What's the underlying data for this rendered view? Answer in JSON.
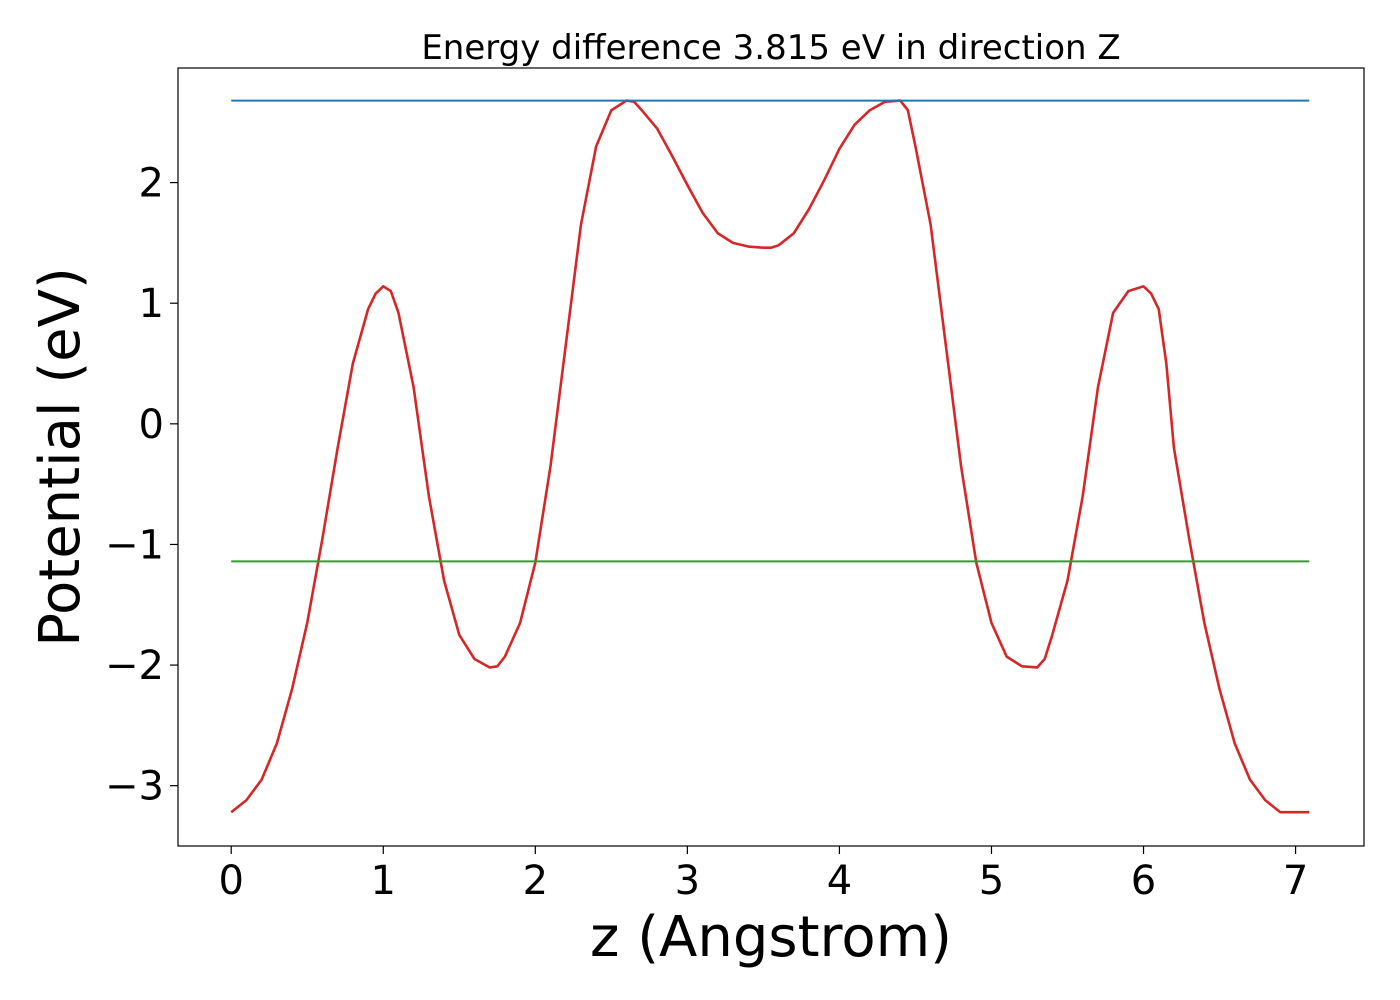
{
  "chart_data": {
    "type": "line",
    "title": "Energy difference 3.815 eV in direction Z",
    "xlabel": "z (Angstrom)",
    "ylabel": "Potential (eV)",
    "xlim": [
      -0.35,
      7.45
    ],
    "ylim": [
      -3.5,
      2.95
    ],
    "x_ticks": [
      0,
      1,
      2,
      3,
      4,
      5,
      6,
      7
    ],
    "y_ticks": [
      -3,
      -2,
      -1,
      0,
      1,
      2
    ],
    "x_tick_labels": [
      "0",
      "1",
      "2",
      "3",
      "4",
      "5",
      "6",
      "7"
    ],
    "y_tick_labels": [
      "−3",
      "−2",
      "−1",
      "0",
      "1",
      "2"
    ],
    "grid": false,
    "series": [
      {
        "color": "#d62728",
        "x": [
          0.0,
          0.1,
          0.2,
          0.3,
          0.4,
          0.5,
          0.6,
          0.7,
          0.8,
          0.9,
          0.95,
          1.0,
          1.05,
          1.1,
          1.2,
          1.3,
          1.4,
          1.5,
          1.6,
          1.7,
          1.75,
          1.8,
          1.9,
          2.0,
          2.1,
          2.2,
          2.3,
          2.4,
          2.5,
          2.6,
          2.65,
          2.7,
          2.8,
          2.9,
          3.0,
          3.1,
          3.2,
          3.3,
          3.4,
          3.5,
          3.55,
          3.6,
          3.7,
          3.8,
          3.9,
          4.0,
          4.1,
          4.2,
          4.3,
          4.4,
          4.45,
          4.5,
          4.6,
          4.7,
          4.8,
          4.9,
          5.0,
          5.1,
          5.2,
          5.3,
          5.35,
          5.4,
          5.5,
          5.6,
          5.7,
          5.8,
          5.9,
          6.0,
          6.05,
          6.1,
          6.15,
          6.2,
          6.3,
          6.4,
          6.5,
          6.6,
          6.7,
          6.8,
          6.9,
          7.0,
          7.09
        ],
        "values": [
          -3.22,
          -3.12,
          -2.95,
          -2.65,
          -2.2,
          -1.65,
          -0.95,
          -0.2,
          0.5,
          0.95,
          1.08,
          1.14,
          1.1,
          0.92,
          0.3,
          -0.6,
          -1.3,
          -1.75,
          -1.95,
          -2.02,
          -2.01,
          -1.93,
          -1.65,
          -1.15,
          -0.35,
          0.65,
          1.65,
          2.3,
          2.6,
          2.68,
          2.67,
          2.6,
          2.45,
          2.22,
          1.98,
          1.75,
          1.58,
          1.5,
          1.47,
          1.46,
          1.46,
          1.48,
          1.58,
          1.78,
          2.02,
          2.28,
          2.48,
          2.6,
          2.67,
          2.68,
          2.6,
          2.3,
          1.65,
          0.65,
          -0.35,
          -1.15,
          -1.65,
          -1.93,
          -2.01,
          -2.02,
          -1.95,
          -1.75,
          -1.3,
          -0.6,
          0.3,
          0.92,
          1.1,
          1.14,
          1.08,
          0.95,
          0.5,
          -0.2,
          -0.95,
          -1.65,
          -2.2,
          -2.65,
          -2.95,
          -3.12,
          -3.22,
          -3.22,
          -3.22
        ]
      },
      {
        "color": "#1f77b4",
        "x": [
          0.0,
          7.09
        ],
        "values": [
          2.68,
          2.68
        ]
      },
      {
        "color": "#2ca02c",
        "x": [
          0.0,
          7.09
        ],
        "values": [
          -1.14,
          -1.14
        ]
      }
    ]
  }
}
